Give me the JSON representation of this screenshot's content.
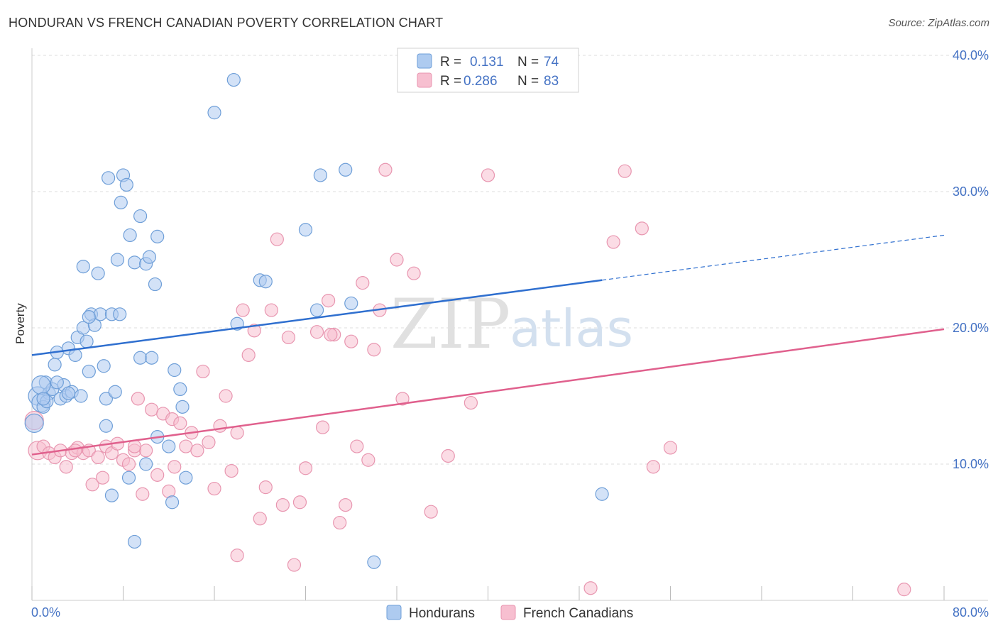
{
  "title": "HONDURAN VS FRENCH CANADIAN POVERTY CORRELATION CHART",
  "source": "Source: ZipAtlas.com",
  "watermark": {
    "zip": "ZIP",
    "atlas": "atlas"
  },
  "legend": {
    "rows": [
      {
        "r_label": "R =",
        "r_value": "0.131",
        "n_label": "N =",
        "n_value": "74"
      },
      {
        "r_label": "R =",
        "r_value": "0.286",
        "n_label": "N =",
        "n_value": "83"
      }
    ]
  },
  "bottom_legend": [
    "Hondurans",
    "French Canadians"
  ],
  "colors": {
    "blue_fill": "#aecbf0",
    "blue_stroke": "#6f9fd8",
    "blue_line": "#2f6fcf",
    "pink_fill": "#f7bfd0",
    "pink_stroke": "#e896b0",
    "pink_line": "#e0608d",
    "axis_text": "#4472c4",
    "grid": "#dddddd"
  },
  "chart_data": {
    "type": "scatter",
    "title": "HONDURAN VS FRENCH CANADIAN POVERTY CORRELATION CHART",
    "xlabel": "",
    "ylabel": "Poverty",
    "xlim": [
      0,
      80
    ],
    "ylim": [
      0,
      40
    ],
    "x_tick_labels": [
      "0.0%",
      "80.0%"
    ],
    "y_tick_labels": [
      "10.0%",
      "20.0%",
      "30.0%",
      "40.0%"
    ],
    "y_ticks": [
      10,
      20,
      30,
      40
    ],
    "grid": true,
    "legend_position": "top-center",
    "series": [
      {
        "name": "Hondurans",
        "color": "#6f9fd8",
        "trend": {
          "x0": 0,
          "y0": 18.0,
          "x1": 50,
          "y1": 23.5,
          "dashed_to_x": 80,
          "dashed_to_y": 26.8
        },
        "points": [
          [
            0.2,
            13.0
          ],
          [
            0.5,
            15.0
          ],
          [
            0.8,
            14.5
          ],
          [
            1.0,
            14.2
          ],
          [
            1.2,
            16.0
          ],
          [
            1.5,
            15.2
          ],
          [
            1.8,
            15.5
          ],
          [
            2.0,
            17.3
          ],
          [
            2.2,
            18.2
          ],
          [
            2.5,
            14.8
          ],
          [
            2.8,
            15.8
          ],
          [
            3.0,
            15.0
          ],
          [
            3.2,
            18.5
          ],
          [
            3.5,
            15.3
          ],
          [
            3.8,
            18.0
          ],
          [
            4.0,
            19.3
          ],
          [
            4.5,
            20.0
          ],
          [
            4.8,
            19.0
          ],
          [
            5.0,
            16.8
          ],
          [
            5.2,
            21.0
          ],
          [
            5.5,
            20.2
          ],
          [
            6.0,
            21.0
          ],
          [
            6.3,
            17.2
          ],
          [
            6.5,
            14.8
          ],
          [
            7.0,
            21.0
          ],
          [
            7.3,
            15.3
          ],
          [
            7.5,
            25.0
          ],
          [
            7.8,
            29.2
          ],
          [
            8.0,
            31.2
          ],
          [
            8.3,
            30.5
          ],
          [
            8.6,
            26.8
          ],
          [
            9.0,
            24.8
          ],
          [
            9.5,
            28.2
          ],
          [
            10.0,
            24.7
          ],
          [
            10.3,
            25.2
          ],
          [
            10.8,
            23.2
          ],
          [
            11.0,
            26.7
          ],
          [
            5.8,
            24.0
          ],
          [
            6.5,
            12.8
          ],
          [
            7.0,
            7.7
          ],
          [
            9.5,
            17.8
          ],
          [
            10.5,
            17.8
          ],
          [
            12.0,
            11.3
          ],
          [
            12.3,
            7.2
          ],
          [
            13.0,
            15.5
          ],
          [
            13.5,
            9.0
          ],
          [
            16.0,
            35.8
          ],
          [
            17.7,
            38.2
          ],
          [
            18.0,
            20.3
          ],
          [
            20.0,
            23.5
          ],
          [
            20.5,
            23.4
          ],
          [
            24.0,
            27.2
          ],
          [
            25.0,
            21.3
          ],
          [
            25.3,
            31.2
          ],
          [
            27.5,
            31.6
          ],
          [
            28.0,
            21.8
          ],
          [
            30.0,
            2.8
          ],
          [
            50.0,
            7.8
          ],
          [
            4.5,
            24.5
          ],
          [
            7.7,
            21.0
          ],
          [
            9.0,
            4.3
          ],
          [
            3.2,
            15.2
          ],
          [
            1.3,
            14.6
          ],
          [
            0.8,
            15.8
          ],
          [
            2.2,
            16.0
          ],
          [
            4.3,
            15.0
          ],
          [
            5.0,
            20.8
          ],
          [
            10.0,
            10.0
          ],
          [
            12.5,
            16.9
          ],
          [
            13.2,
            14.2
          ],
          [
            11.0,
            12.0
          ],
          [
            8.5,
            9.0
          ],
          [
            1.0,
            14.8
          ],
          [
            6.7,
            31.0
          ]
        ]
      },
      {
        "name": "French Canadians",
        "color": "#e896b0",
        "trend": {
          "x0": 0,
          "y0": 10.7,
          "x1": 80,
          "y1": 19.9
        },
        "points": [
          [
            0.2,
            13.2
          ],
          [
            0.5,
            11.0
          ],
          [
            1.0,
            11.3
          ],
          [
            1.5,
            10.8
          ],
          [
            2.0,
            10.5
          ],
          [
            2.5,
            11.0
          ],
          [
            3.0,
            9.8
          ],
          [
            3.5,
            10.8
          ],
          [
            4.0,
            11.2
          ],
          [
            4.5,
            10.8
          ],
          [
            5.0,
            11.0
          ],
          [
            5.3,
            8.5
          ],
          [
            5.8,
            10.5
          ],
          [
            6.2,
            9.0
          ],
          [
            6.5,
            11.3
          ],
          [
            7.0,
            10.8
          ],
          [
            7.5,
            11.5
          ],
          [
            8.0,
            10.3
          ],
          [
            8.5,
            10.0
          ],
          [
            9.0,
            11.0
          ],
          [
            9.3,
            14.8
          ],
          [
            9.7,
            7.8
          ],
          [
            10.0,
            11.0
          ],
          [
            10.5,
            14.0
          ],
          [
            11.0,
            9.2
          ],
          [
            11.5,
            13.7
          ],
          [
            12.0,
            8.0
          ],
          [
            12.3,
            13.3
          ],
          [
            12.5,
            9.8
          ],
          [
            13.0,
            13.0
          ],
          [
            13.5,
            11.3
          ],
          [
            14.0,
            12.3
          ],
          [
            14.5,
            11.0
          ],
          [
            15.0,
            16.8
          ],
          [
            15.5,
            11.6
          ],
          [
            16.0,
            8.2
          ],
          [
            16.5,
            12.8
          ],
          [
            17.0,
            15.0
          ],
          [
            17.5,
            9.5
          ],
          [
            18.0,
            3.3
          ],
          [
            18.5,
            21.3
          ],
          [
            19.0,
            18.0
          ],
          [
            19.5,
            19.8
          ],
          [
            20.0,
            6.0
          ],
          [
            20.5,
            8.3
          ],
          [
            21.0,
            21.3
          ],
          [
            21.5,
            26.5
          ],
          [
            22.0,
            7.0
          ],
          [
            22.5,
            19.3
          ],
          [
            23.0,
            2.6
          ],
          [
            23.5,
            7.2
          ],
          [
            24.0,
            9.7
          ],
          [
            25.0,
            19.7
          ],
          [
            25.5,
            12.7
          ],
          [
            26.0,
            22.0
          ],
          [
            26.5,
            19.5
          ],
          [
            27.0,
            5.7
          ],
          [
            27.5,
            7.0
          ],
          [
            28.0,
            19.0
          ],
          [
            28.5,
            11.3
          ],
          [
            29.0,
            23.3
          ],
          [
            29.5,
            10.3
          ],
          [
            30.0,
            18.4
          ],
          [
            31.0,
            31.6
          ],
          [
            32.0,
            25.0
          ],
          [
            32.5,
            14.8
          ],
          [
            33.5,
            24.0
          ],
          [
            35.0,
            6.5
          ],
          [
            36.5,
            10.6
          ],
          [
            38.5,
            14.5
          ],
          [
            40.0,
            31.2
          ],
          [
            49.0,
            0.9
          ],
          [
            51.0,
            26.3
          ],
          [
            52.0,
            31.5
          ],
          [
            53.5,
            27.3
          ],
          [
            54.5,
            9.8
          ],
          [
            56.0,
            11.2
          ],
          [
            76.5,
            0.8
          ],
          [
            26.2,
            19.5
          ],
          [
            30.5,
            21.3
          ],
          [
            9.0,
            11.3
          ],
          [
            18.0,
            12.3
          ],
          [
            3.8,
            11.0
          ]
        ]
      }
    ]
  }
}
